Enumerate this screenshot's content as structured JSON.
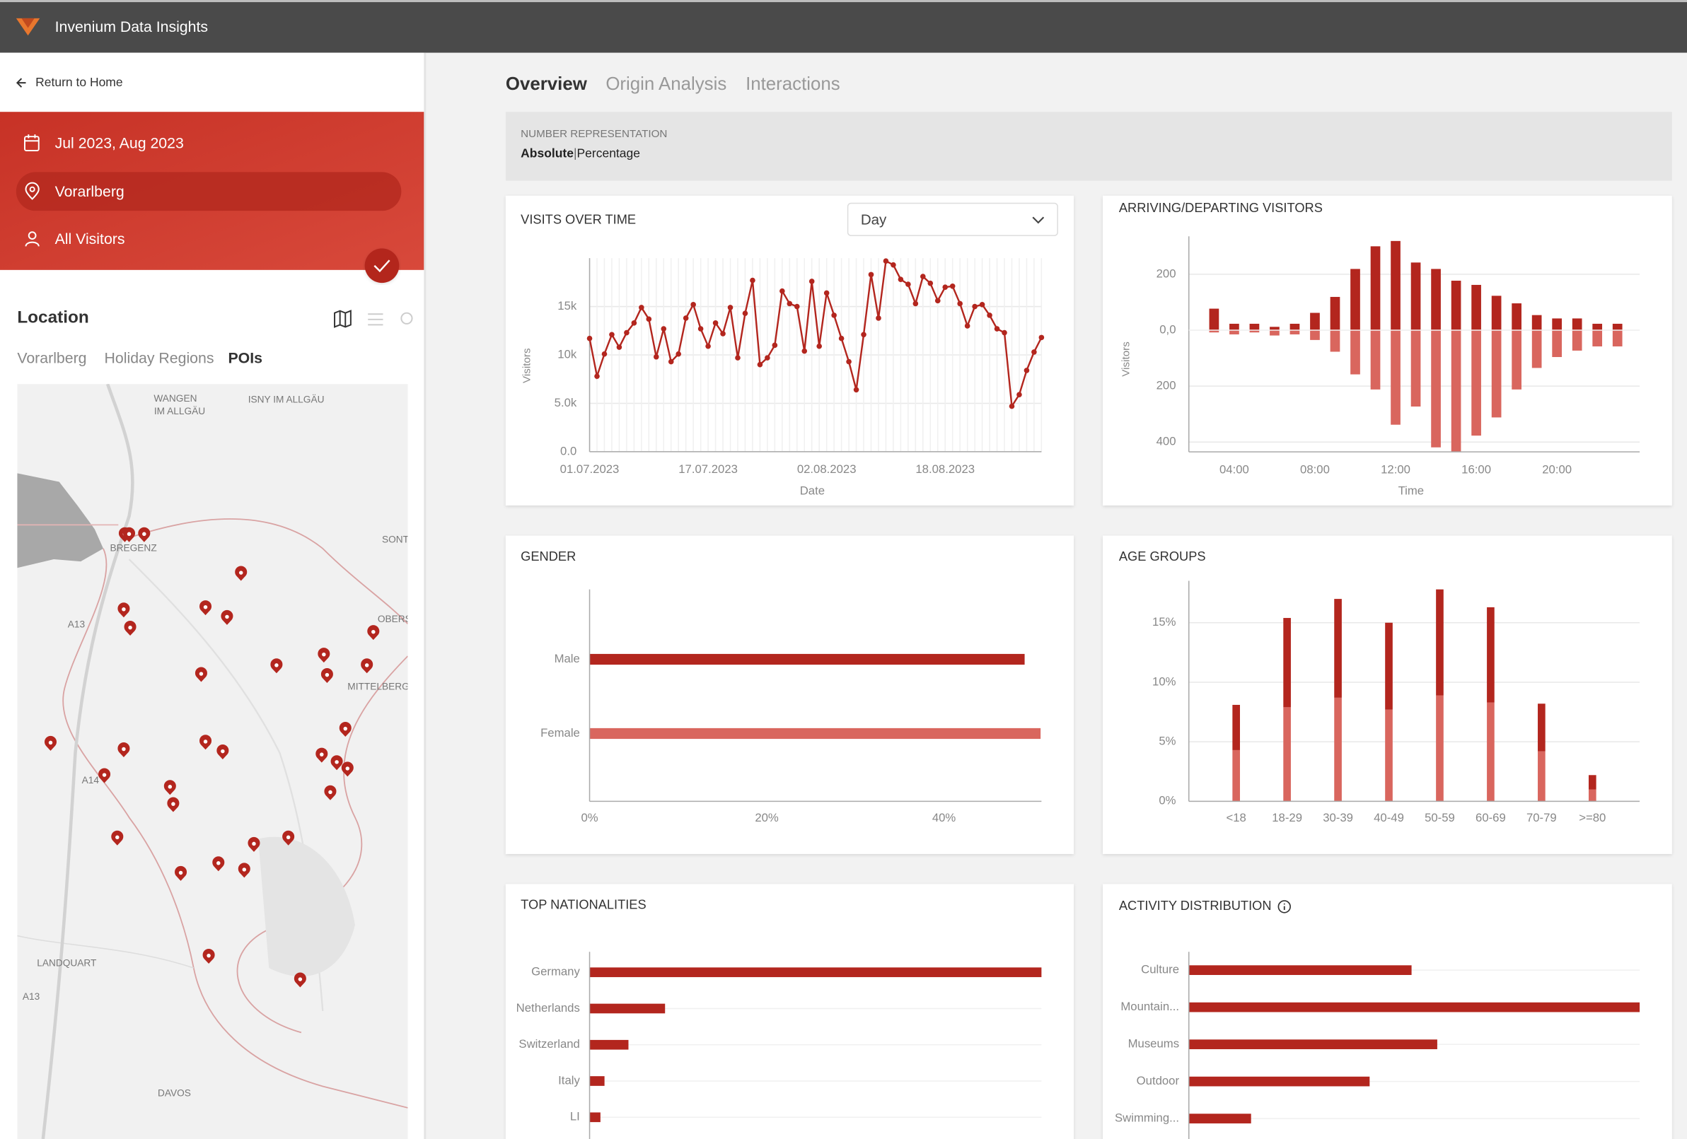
{
  "header": {
    "app_name": "Invenium Data Insights"
  },
  "sidebar": {
    "return_link": "Return to Home",
    "filters": [
      "Jul 2023, Aug 2023",
      "Vorarlberg",
      "All Visitors"
    ],
    "location_title": "Location",
    "location_tabs": [
      "Vorarlberg",
      "Holiday Regions",
      "POIs"
    ],
    "map_labels": [
      "WANGEN",
      "IM ALLGÄU",
      "ISNY IM ALLGÄU",
      "BREGENZ",
      "SONT",
      "OBERS",
      "MITTELBERG",
      "A13",
      "A14",
      "LANDQUART",
      "A13",
      "DAVOS"
    ]
  },
  "main": {
    "tabs": [
      "Overview",
      "Origin Analysis",
      "Interactions"
    ],
    "number_representation": {
      "label": "NUMBER REPRESENTATION",
      "options": [
        "Absolute",
        "Percentage"
      ],
      "separator": "|"
    }
  },
  "chart_data": [
    {
      "type": "line",
      "title": "VISITS OVER TIME",
      "dropdown": "Day",
      "y_label": "Visitors",
      "x_label": "Date",
      "x": [
        "01.07.2023",
        "02.07.2023",
        "03.07.2023",
        "04.07.2023",
        "05.07.2023",
        "06.07.2023",
        "07.07.2023",
        "08.07.2023",
        "09.07.2023",
        "10.07.2023",
        "11.07.2023",
        "12.07.2023",
        "13.07.2023",
        "14.07.2023",
        "15.07.2023",
        "16.07.2023",
        "17.07.2023",
        "18.07.2023",
        "19.07.2023",
        "20.07.2023",
        "21.07.2023",
        "22.07.2023",
        "23.07.2023",
        "24.07.2023",
        "25.07.2023",
        "26.07.2023",
        "27.07.2023",
        "28.07.2023",
        "29.07.2023",
        "30.07.2023",
        "31.07.2023",
        "01.08.2023",
        "02.08.2023",
        "03.08.2023",
        "04.08.2023",
        "05.08.2023",
        "06.08.2023",
        "07.08.2023",
        "08.08.2023",
        "09.08.2023",
        "10.08.2023",
        "11.08.2023",
        "12.08.2023",
        "13.08.2023",
        "14.08.2023",
        "15.08.2023",
        "16.08.2023",
        "17.08.2023",
        "18.08.2023",
        "19.08.2023",
        "20.08.2023",
        "21.08.2023",
        "22.08.2023",
        "23.08.2023",
        "24.08.2023",
        "25.08.2023",
        "26.08.2023",
        "27.08.2023",
        "28.08.2023",
        "29.08.2023",
        "30.08.2023",
        "31.08.2023"
      ],
      "xticks": [
        "01.07.2023",
        "17.07.2023",
        "02.08.2023",
        "18.08.2023"
      ],
      "values": [
        11700,
        7800,
        10100,
        12100,
        10800,
        12300,
        13300,
        14900,
        13700,
        9800,
        12700,
        9300,
        10100,
        13800,
        15200,
        12700,
        10900,
        13300,
        12200,
        14900,
        9700,
        14300,
        17700,
        9000,
        9700,
        11000,
        16600,
        15300,
        15000,
        10400,
        17600,
        10900,
        16400,
        14100,
        11700,
        9300,
        6400,
        12100,
        18300,
        13800,
        19700,
        19300,
        17800,
        17300,
        15300,
        18100,
        17400,
        15600,
        17000,
        17100,
        15300,
        13000,
        15000,
        15200,
        14100,
        12700,
        12300,
        4700,
        5900,
        8400,
        10300,
        11800
      ],
      "color": "#b3261e",
      "ylim": [
        0,
        20000
      ],
      "yticks": [
        {
          "value": 0,
          "label": "0.0"
        },
        {
          "value": 5000,
          "label": "5.0k"
        },
        {
          "value": 10000,
          "label": "10k"
        },
        {
          "value": 15000,
          "label": "15k"
        }
      ],
      "grid": true
    },
    {
      "type": "bar",
      "title": "ARRIVING/DEPARTING VISITORS",
      "y_label": "Visitors",
      "x_label": "Time",
      "x": [
        3,
        4,
        5,
        6,
        7,
        8,
        9,
        10,
        11,
        12,
        13,
        14,
        15,
        16,
        17,
        18,
        19,
        20,
        21,
        22,
        23
      ],
      "series": [
        {
          "color": "#b3261e",
          "values": [
            77,
            23,
            23,
            12,
            23,
            62,
            119,
            219,
            300,
            319,
            242,
            219,
            177,
            162,
            123,
            96,
            54,
            42,
            42,
            23,
            23
          ]
        },
        {
          "color": "#d9665e",
          "values": [
            -8,
            -15,
            -8,
            -19,
            -15,
            -35,
            -77,
            -158,
            -212,
            -338,
            -273,
            -419,
            -435,
            -377,
            -312,
            -212,
            -135,
            -96,
            -73,
            -58,
            -58
          ]
        }
      ],
      "xlim": [
        1.75,
        24.1
      ],
      "xticks": [
        {
          "value": 4,
          "label": "04:00"
        },
        {
          "value": 8,
          "label": "08:00"
        },
        {
          "value": 12,
          "label": "12:00"
        },
        {
          "value": 16,
          "label": "16:00"
        },
        {
          "value": 20,
          "label": "20:00"
        }
      ],
      "ylim": [
        -435,
        305
      ],
      "yticks": [
        200,
        {
          "value": 0,
          "label": "0,0"
        },
        {
          "value": -200,
          "label": "200"
        },
        {
          "value": -400,
          "label": "400"
        }
      ],
      "grid": true
    },
    {
      "type": "barh",
      "title": "GENDER",
      "categories": [
        "Male",
        "Female"
      ],
      "values": [
        49.1,
        50.9
      ],
      "colors": [
        "#b3261e",
        "#d9665e"
      ],
      "xlim": [
        0,
        51
      ],
      "xticks": [
        {
          "value": 0,
          "label": "0%"
        },
        {
          "value": 20,
          "label": "20%"
        },
        {
          "value": 40,
          "label": "40%"
        }
      ]
    },
    {
      "type": "bar",
      "title": "AGE GROUPS",
      "categories": [
        "<18",
        "18-29",
        "30-39",
        "40-49",
        "50-59",
        "60-69",
        "70-79",
        ">=80"
      ],
      "series": [
        {
          "color": "#d9665e",
          "values": [
            4.3,
            7.9,
            8.7,
            7.7,
            8.9,
            8.3,
            4.2,
            1.0
          ]
        },
        {
          "color": "#b3261e",
          "values": [
            3.8,
            7.5,
            8.3,
            7.3,
            8.9,
            8.0,
            4.0,
            1.2
          ]
        }
      ],
      "ylim": [
        0,
        17.8
      ],
      "yticks": [
        {
          "value": 0,
          "label": "0%"
        },
        {
          "value": 5,
          "label": "5%"
        },
        {
          "value": 10,
          "label": "10%"
        },
        {
          "value": 15,
          "label": "15%"
        }
      ],
      "grid": true
    },
    {
      "type": "barh",
      "title": "TOP NATIONALITIES",
      "categories": [
        "Germany",
        "Netherlands",
        "Switzerland",
        "Italy",
        "LI"
      ],
      "values": [
        100,
        16.7,
        8.6,
        3.3,
        2.4
      ],
      "color": "#b3261e",
      "xlim": [
        0,
        100
      ],
      "grid": true
    },
    {
      "type": "barh",
      "title": "ACTIVITY DISTRIBUTION",
      "categories": [
        "Culture",
        "Mountain...",
        "Museums",
        "Outdoor",
        "Swimming..."
      ],
      "values": [
        49.4,
        100,
        55.1,
        40.1,
        13.8
      ],
      "color": "#b3261e",
      "xlim": [
        0,
        100
      ],
      "grid": true
    }
  ]
}
